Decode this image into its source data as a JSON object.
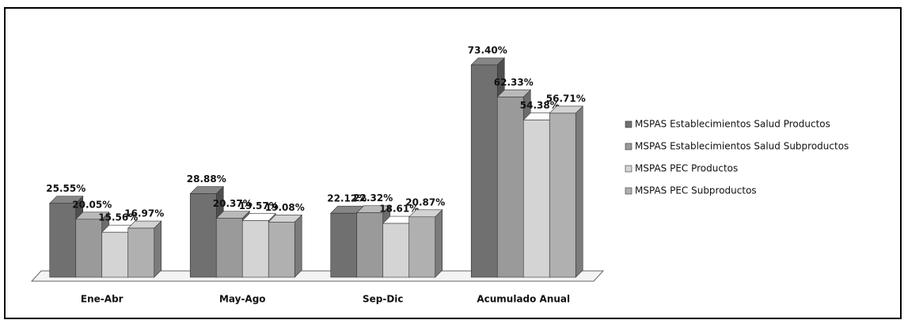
{
  "chart_data": {
    "type": "bar3d",
    "categories": [
      "Ene-Abr",
      "May-Ago",
      "Sep-Dic",
      "Acumulado Anual"
    ],
    "series": [
      {
        "name": "MSPAS Establecimientos Salud Productos",
        "color": "#707070",
        "values": [
          25.55,
          28.88,
          22.12,
          73.4
        ],
        "value_labels": [
          "25.55%",
          "28.88%",
          "22.12%",
          "73.40%"
        ]
      },
      {
        "name": "MSPAS Establecimientos Salud Subproductos",
        "color": "#9a9a9a",
        "values": [
          20.05,
          20.37,
          22.32,
          62.33
        ],
        "value_labels": [
          "20.05%",
          "20.37%",
          "22.32%",
          "62.33%"
        ]
      },
      {
        "name": "MSPAS PEC Productos",
        "color": "#d4d4d4",
        "values": [
          15.56,
          19.57,
          18.61,
          54.38
        ],
        "value_labels": [
          "15.56%",
          "19.57%",
          "18.61%",
          "54.38%"
        ]
      },
      {
        "name": "MSPAS PEC Subproductos",
        "color": "#b0b0b0",
        "values": [
          16.97,
          19.08,
          20.87,
          56.71
        ],
        "value_labels": [
          "16.97%",
          "19.08%",
          "20.87%",
          "56.71%"
        ]
      }
    ],
    "legend": "right"
  }
}
